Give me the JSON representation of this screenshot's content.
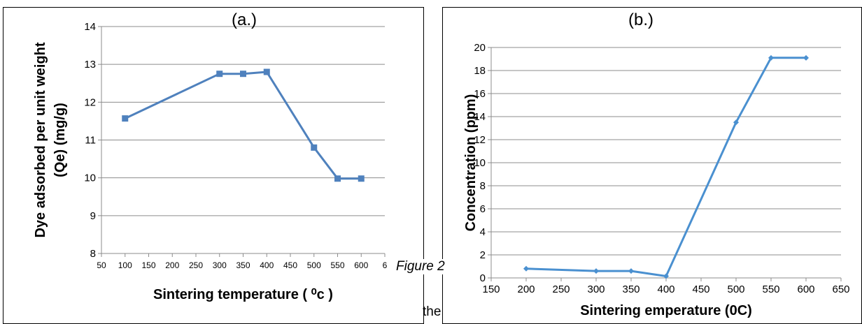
{
  "figure_caption": "Figure 2",
  "stray_text": "the",
  "chart_data": [
    {
      "type": "line",
      "title": "(a.)",
      "xlabel": "Sintering temperature ( ⁰c )",
      "ylabel_line1": "Dye adsorbed per unit weight",
      "ylabel_line2": "(Qe) (mg/g)",
      "xlim": [
        50,
        650
      ],
      "ylim": [
        8,
        14
      ],
      "xticks": [
        "50",
        "100",
        "150",
        "200",
        "250",
        "300",
        "350",
        "400",
        "450",
        "500",
        "550",
        "600",
        "6"
      ],
      "yticks": [
        "8",
        "9",
        "10",
        "11",
        "12",
        "13",
        "14"
      ],
      "grid": "horizontal",
      "marker": "square",
      "color": "#4f81bd",
      "x": [
        100,
        300,
        350,
        400,
        500,
        550,
        600
      ],
      "y": [
        11.57,
        12.75,
        12.75,
        12.8,
        10.8,
        9.98,
        9.98
      ]
    },
    {
      "type": "line",
      "title": "(b.)",
      "xlabel": "Sintering emperature (0C)",
      "ylabel": "Concentration (ppm)",
      "xlim": [
        150,
        650
      ],
      "ylim": [
        0,
        20
      ],
      "xticks": [
        "150",
        "200",
        "250",
        "300",
        "350",
        "400",
        "450",
        "500",
        "550",
        "600",
        "650"
      ],
      "yticks": [
        "0",
        "2",
        "4",
        "6",
        "8",
        "10",
        "12",
        "14",
        "16",
        "18",
        "20"
      ],
      "grid": "horizontal",
      "marker": "diamond",
      "color": "#4a90d0",
      "x": [
        200,
        300,
        350,
        400,
        500,
        550,
        600
      ],
      "y": [
        0.8,
        0.6,
        0.6,
        0.15,
        13.5,
        19.1,
        19.1
      ]
    }
  ]
}
